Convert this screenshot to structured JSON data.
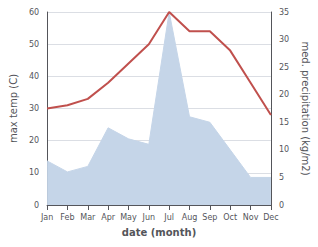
{
  "chart_data": {
    "type": "line",
    "categories": [
      "Jan",
      "Feb",
      "Mar",
      "Apr",
      "May",
      "Jun",
      "Jul",
      "Aug",
      "Sep",
      "Oct",
      "Nov",
      "Dec"
    ],
    "series": [
      {
        "type": "area",
        "axis": "y2",
        "color": "#c5d5e8",
        "values": [
          8,
          6,
          7,
          14,
          12,
          11,
          35,
          16,
          15,
          10,
          5,
          5
        ]
      },
      {
        "type": "line",
        "color": "#c0504d",
        "values": [
          30,
          31,
          33,
          38,
          44,
          50,
          60,
          54,
          54,
          48,
          38,
          28
        ]
      }
    ],
    "xlabel": "date (month)",
    "ylabel": "max temp (C)",
    "y2label": "med. precipitation (kg/m2)",
    "ylim": [
      0,
      60
    ],
    "yticks": [
      0,
      10,
      20,
      30,
      40,
      50,
      60
    ],
    "y2lim": [
      0,
      35
    ],
    "y2ticks": [
      0,
      5,
      10,
      15,
      20,
      25,
      30,
      35
    ],
    "grid": true
  }
}
